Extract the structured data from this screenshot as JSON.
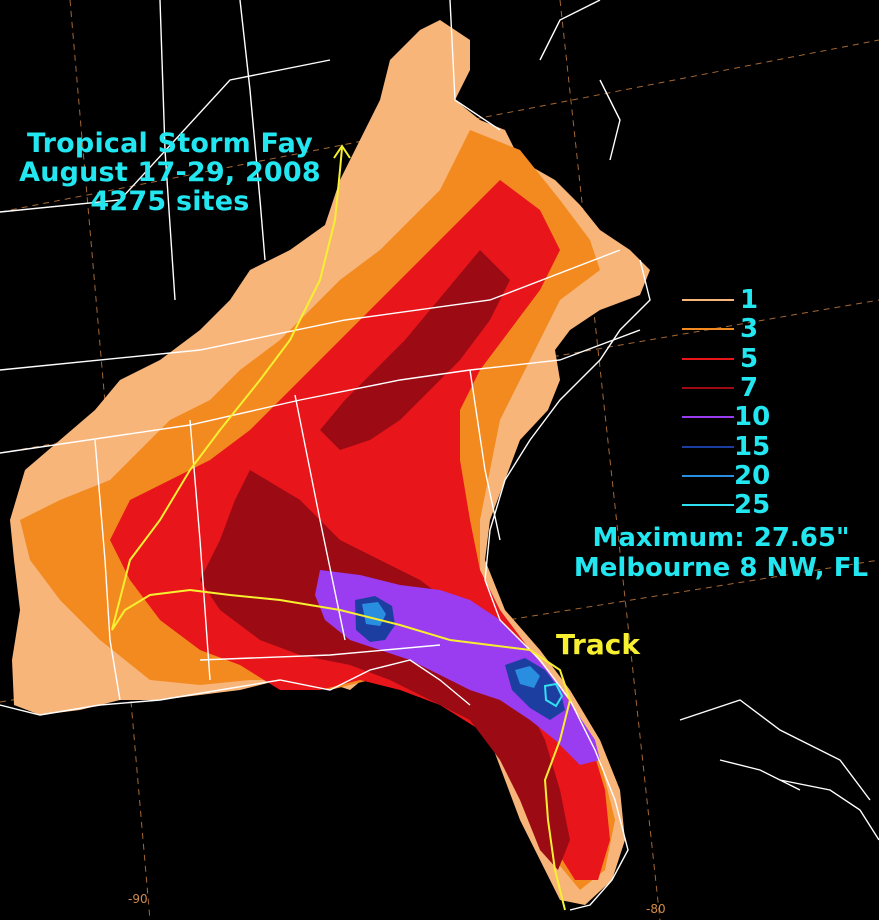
{
  "title": {
    "line1": "Tropical Storm Fay",
    "line2": "August 17-29, 2008",
    "line3": "4275 sites"
  },
  "legend": [
    {
      "label": "1",
      "color": "#f7b57a"
    },
    {
      "label": "3",
      "color": "#f38a20"
    },
    {
      "label": "5",
      "color": "#e8151a"
    },
    {
      "label": "7",
      "color": "#9c0a14"
    },
    {
      "label": "10",
      "color": "#9a3cf0"
    },
    {
      "label": "15",
      "color": "#1c3ea0"
    },
    {
      "label": "20",
      "color": "#2a8ee0"
    },
    {
      "label": "25",
      "color": "#30e0f0"
    }
  ],
  "maximum": {
    "line1": "Maximum: 27.65\"",
    "line2": "Melbourne 8 NW, FL"
  },
  "track_label": "Track",
  "longitude_labels": [
    "-90",
    "-80"
  ],
  "colors": {
    "background": "#000000",
    "text": "#22e6f0",
    "track": "#f6f030",
    "boundaries": "#ffffff",
    "graticule": "#c07a40"
  }
}
